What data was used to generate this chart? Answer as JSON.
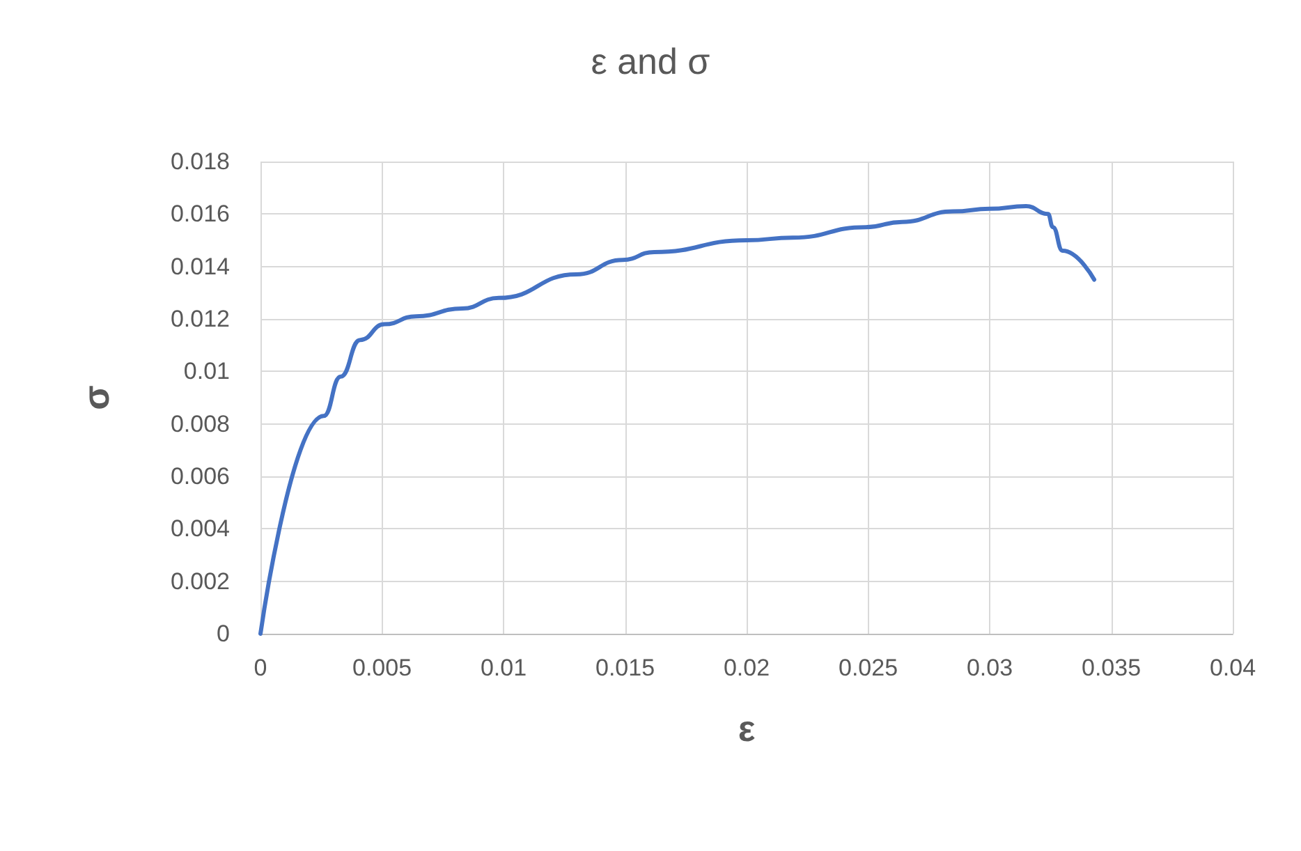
{
  "chart_data": {
    "type": "line",
    "title": "ε and σ",
    "xlabel": "ε",
    "ylabel": "σ",
    "x": [
      0,
      0.0026,
      0.0033,
      0.0041,
      0.0051,
      0.0064,
      0.0083,
      0.0098,
      0.013,
      0.0149,
      0.0162,
      0.02,
      0.0219,
      0.0249,
      0.0264,
      0.0285,
      0.03,
      0.0315,
      0.0324,
      0.0326,
      0.033,
      0.0343
    ],
    "series": [
      {
        "color": "#4472c4",
        "values": [
          0,
          0.0083,
          0.0098,
          0.0112,
          0.0118,
          0.0121,
          0.0124,
          0.0128,
          0.0137,
          0.01425,
          0.01455,
          0.015,
          0.0151,
          0.0155,
          0.0157,
          0.0161,
          0.0162,
          0.0163,
          0.016,
          0.0155,
          0.0146,
          0.0135
        ]
      }
    ],
    "xlim": [
      0,
      0.04
    ],
    "xticks": [
      0,
      0.005,
      0.01,
      0.015,
      0.02,
      0.025,
      0.03,
      0.035,
      0.04
    ],
    "ylim": [
      0,
      0.018
    ],
    "yticks": [
      0,
      0.002,
      0.004,
      0.006,
      0.008,
      0.01,
      0.012,
      0.014,
      0.016,
      0.018
    ],
    "grid": true,
    "marker": "none",
    "line_style": "solid"
  }
}
